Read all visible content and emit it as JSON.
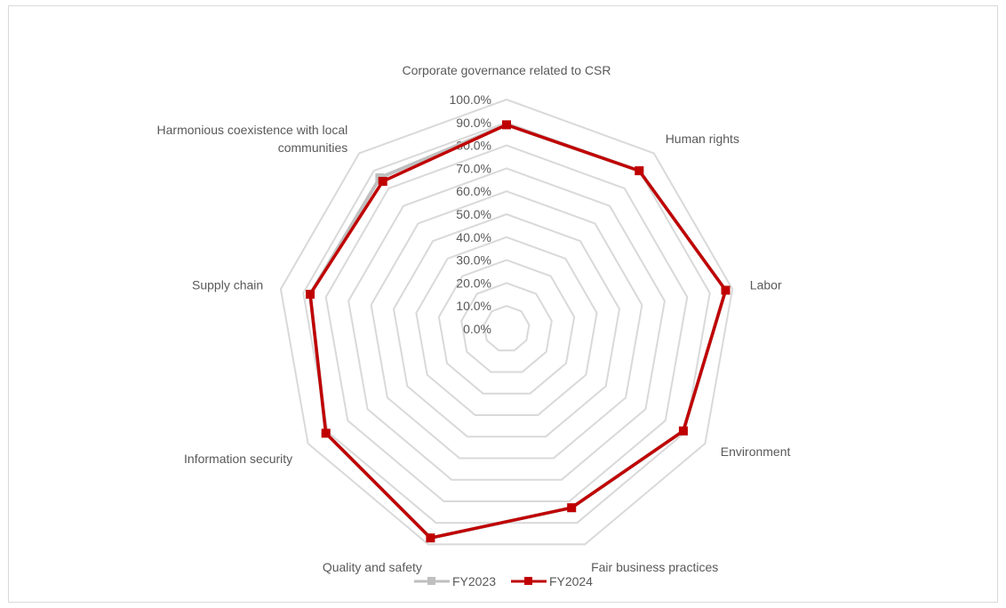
{
  "chart_data": {
    "type": "radar",
    "title": "",
    "categories": [
      "Corporate governance related to CSR",
      "Human rights",
      "Labor",
      "Environment",
      "Fair business practices",
      "Quality and safety",
      "Information security",
      "Supply chain",
      "Harmonious coexistence with local communities"
    ],
    "category_lines": [
      [
        "Corporate governance related to CSR"
      ],
      [
        "Human rights"
      ],
      [
        "Labor"
      ],
      [
        "Environment"
      ],
      [
        "Fair business practices"
      ],
      [
        "Quality and safety"
      ],
      [
        "Information security"
      ],
      [
        "Supply chain"
      ],
      [
        "Harmonious coexistence with local",
        "communities"
      ]
    ],
    "rlim": [
      0,
      100
    ],
    "ticks": [
      "0.0%",
      "10.0%",
      "20.0%",
      "30.0%",
      "40.0%",
      "50.0%",
      "60.0%",
      "70.0%",
      "80.0%",
      "90.0%",
      "100.0%"
    ],
    "grid": true,
    "legend_position": "bottom",
    "series": [
      {
        "name": "FY2023",
        "color": "#bfbfbf",
        "values": [
          89,
          90,
          97,
          89,
          83,
          97,
          91,
          87,
          86
        ]
      },
      {
        "name": "FY2024",
        "color": "#c00000",
        "values": [
          89,
          90,
          97,
          89,
          83,
          97,
          91,
          87,
          84
        ]
      }
    ]
  }
}
